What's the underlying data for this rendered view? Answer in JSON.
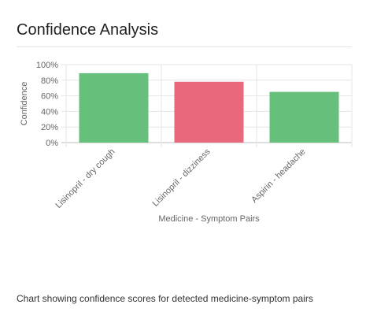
{
  "card": {
    "title": "Confidence Analysis",
    "caption": "Chart showing confidence scores for detected medicine-symptom pairs"
  },
  "chart_data": {
    "type": "bar",
    "categories": [
      "Lisinopril - dry cough",
      "Lisinopril - dizziness",
      "Aspirin - headache"
    ],
    "values": [
      89,
      78,
      65
    ],
    "value_unit": "%",
    "bar_colors": [
      "#66bf7a",
      "#e8697b",
      "#66bf7a"
    ],
    "xlabel": "Medicine - Symptom Pairs",
    "ylabel": "Confidence",
    "ylim": [
      0,
      100
    ],
    "yticks": [
      "0%",
      "20%",
      "40%",
      "60%",
      "80%",
      "100%"
    ],
    "grid": true,
    "legend": "none"
  }
}
